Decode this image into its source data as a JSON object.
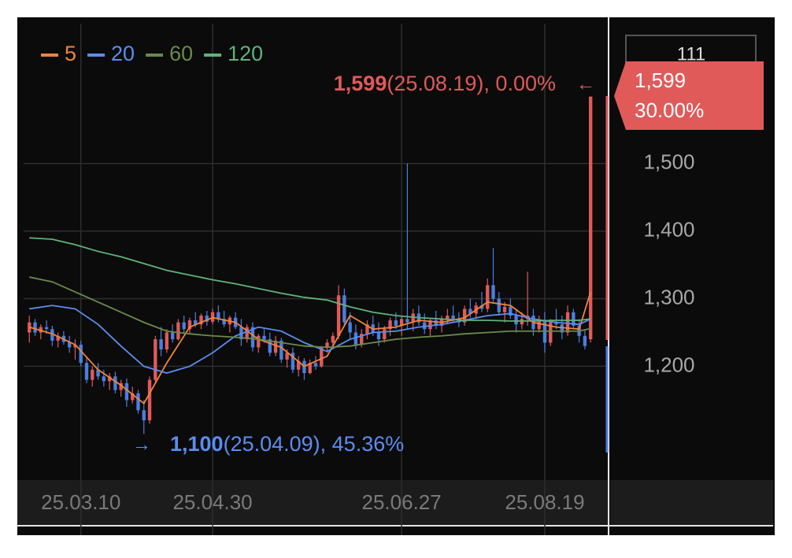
{
  "chart_data": {
    "type": "candlestick",
    "legend": [
      {
        "name": "5",
        "color": "#f0843c"
      },
      {
        "name": "20",
        "color": "#5b8def"
      },
      {
        "name": "60",
        "color": "#6b8a4a"
      },
      {
        "name": "120",
        "color": "#5fb37a"
      }
    ],
    "up_color": "#e05a5a",
    "down_color": "#4a7fe0",
    "xlim": [
      -1,
      101
    ],
    "ylim": [
      1034,
      1707
    ],
    "xticks": [
      {
        "value": 9,
        "label": "25.03.10"
      },
      {
        "value": 32,
        "label": "25.04.30"
      },
      {
        "value": 65,
        "label": "25.06.27"
      },
      {
        "value": 90,
        "label": "25.08.19"
      }
    ],
    "yticks": [
      {
        "value": 1200,
        "label": "1,200"
      },
      {
        "value": 1300,
        "label": "1,300"
      },
      {
        "value": 1400,
        "label": "1,400"
      },
      {
        "value": 1500,
        "label": "1,500"
      }
    ],
    "top_box_label": "111",
    "current_price": {
      "value": 1599,
      "label": "1,599",
      "change": "30.00%"
    },
    "high_note": {
      "value": 1599,
      "label": "1,599",
      "detail": "(25.08.19), 0.00%"
    },
    "low_note": {
      "value": 1100,
      "label": "1,100",
      "detail": "(25.04.09), 45.36%"
    },
    "candles": [
      [
        1250,
        1275,
        1235,
        1265
      ],
      [
        1265,
        1270,
        1245,
        1250
      ],
      [
        1250,
        1262,
        1240,
        1258
      ],
      [
        1258,
        1268,
        1248,
        1255
      ],
      [
        1255,
        1260,
        1230,
        1238
      ],
      [
        1238,
        1250,
        1228,
        1245
      ],
      [
        1245,
        1252,
        1232,
        1236
      ],
      [
        1236,
        1245,
        1220,
        1228
      ],
      [
        1228,
        1240,
        1210,
        1232
      ],
      [
        1232,
        1238,
        1200,
        1205
      ],
      [
        1205,
        1215,
        1175,
        1180
      ],
      [
        1180,
        1200,
        1170,
        1195
      ],
      [
        1195,
        1205,
        1180,
        1185
      ],
      [
        1185,
        1195,
        1170,
        1178
      ],
      [
        1178,
        1190,
        1165,
        1185
      ],
      [
        1185,
        1192,
        1160,
        1165
      ],
      [
        1165,
        1180,
        1155,
        1175
      ],
      [
        1175,
        1182,
        1140,
        1150
      ],
      [
        1150,
        1170,
        1145,
        1160
      ],
      [
        1160,
        1165,
        1130,
        1135
      ],
      [
        1135,
        1150,
        1100,
        1120
      ],
      [
        1120,
        1185,
        1115,
        1180
      ],
      [
        1180,
        1245,
        1175,
        1240
      ],
      [
        1240,
        1258,
        1215,
        1225
      ],
      [
        1225,
        1255,
        1220,
        1250
      ],
      [
        1250,
        1262,
        1235,
        1240
      ],
      [
        1240,
        1270,
        1238,
        1265
      ],
      [
        1265,
        1275,
        1250,
        1255
      ],
      [
        1255,
        1272,
        1248,
        1268
      ],
      [
        1268,
        1280,
        1258,
        1262
      ],
      [
        1262,
        1278,
        1255,
        1275
      ],
      [
        1275,
        1282,
        1260,
        1266
      ],
      [
        1266,
        1285,
        1262,
        1280
      ],
      [
        1280,
        1290,
        1265,
        1270
      ],
      [
        1270,
        1282,
        1258,
        1262
      ],
      [
        1262,
        1275,
        1250,
        1272
      ],
      [
        1272,
        1280,
        1255,
        1258
      ],
      [
        1258,
        1270,
        1230,
        1240
      ],
      [
        1240,
        1262,
        1235,
        1258
      ],
      [
        1258,
        1265,
        1222,
        1228
      ],
      [
        1228,
        1248,
        1220,
        1245
      ],
      [
        1245,
        1255,
        1235,
        1240
      ],
      [
        1240,
        1250,
        1215,
        1220
      ],
      [
        1220,
        1245,
        1215,
        1238
      ],
      [
        1238,
        1242,
        1205,
        1210
      ],
      [
        1210,
        1225,
        1198,
        1220
      ],
      [
        1220,
        1228,
        1190,
        1195
      ],
      [
        1195,
        1215,
        1185,
        1208
      ],
      [
        1208,
        1212,
        1180,
        1190
      ],
      [
        1190,
        1210,
        1188,
        1205
      ],
      [
        1205,
        1215,
        1195,
        1200
      ],
      [
        1200,
        1230,
        1198,
        1228
      ],
      [
        1228,
        1240,
        1220,
        1235
      ],
      [
        1235,
        1250,
        1225,
        1245
      ],
      [
        1245,
        1320,
        1240,
        1305
      ],
      [
        1305,
        1315,
        1260,
        1265
      ],
      [
        1265,
        1280,
        1240,
        1250
      ],
      [
        1250,
        1262,
        1225,
        1232
      ],
      [
        1232,
        1255,
        1228,
        1248
      ],
      [
        1248,
        1268,
        1240,
        1262
      ],
      [
        1262,
        1275,
        1245,
        1250
      ],
      [
        1250,
        1265,
        1230,
        1240
      ],
      [
        1240,
        1260,
        1235,
        1255
      ],
      [
        1255,
        1272,
        1245,
        1268
      ],
      [
        1268,
        1280,
        1255,
        1260
      ],
      [
        1260,
        1275,
        1245,
        1270
      ],
      [
        1270,
        1500,
        1255,
        1265
      ],
      [
        1265,
        1285,
        1252,
        1278
      ],
      [
        1278,
        1290,
        1260,
        1265
      ],
      [
        1265,
        1278,
        1248,
        1255
      ],
      [
        1255,
        1270,
        1245,
        1268
      ],
      [
        1268,
        1282,
        1255,
        1260
      ],
      [
        1260,
        1275,
        1250,
        1270
      ],
      [
        1270,
        1285,
        1262,
        1275
      ],
      [
        1275,
        1290,
        1265,
        1270
      ],
      [
        1270,
        1280,
        1258,
        1265
      ],
      [
        1265,
        1290,
        1260,
        1285
      ],
      [
        1285,
        1300,
        1272,
        1278
      ],
      [
        1278,
        1295,
        1270,
        1290
      ],
      [
        1290,
        1310,
        1280,
        1285
      ],
      [
        1285,
        1330,
        1280,
        1320
      ],
      [
        1320,
        1375,
        1295,
        1300
      ],
      [
        1300,
        1310,
        1275,
        1280
      ],
      [
        1280,
        1295,
        1265,
        1288
      ],
      [
        1288,
        1300,
        1270,
        1275
      ],
      [
        1275,
        1285,
        1250,
        1262
      ],
      [
        1262,
        1280,
        1255,
        1270
      ],
      [
        1270,
        1340,
        1260,
        1275
      ],
      [
        1275,
        1285,
        1245,
        1255
      ],
      [
        1255,
        1275,
        1250,
        1268
      ],
      [
        1268,
        1280,
        1220,
        1235
      ],
      [
        1235,
        1270,
        1230,
        1265
      ],
      [
        1265,
        1285,
        1255,
        1262
      ],
      [
        1262,
        1275,
        1240,
        1250
      ],
      [
        1250,
        1290,
        1245,
        1280
      ],
      [
        1280,
        1285,
        1255,
        1260
      ],
      [
        1260,
        1270,
        1235,
        1245
      ],
      [
        1245,
        1255,
        1225,
        1230
      ],
      [
        1240,
        1599,
        1235,
        1599
      ]
    ],
    "ma_x": [
      0,
      4,
      8,
      12,
      16,
      20,
      24,
      28,
      32,
      36,
      40,
      44,
      48,
      52,
      56,
      60,
      64,
      68,
      72,
      76,
      80,
      84,
      88,
      92,
      96,
      98
    ],
    "series": [
      {
        "name": "5",
        "color": "#f0843c",
        "values": [
          1258,
          1248,
          1232,
          1195,
          1172,
          1145,
          1205,
          1258,
          1272,
          1265,
          1240,
          1228,
          1200,
          1215,
          1275,
          1255,
          1258,
          1268,
          1265,
          1272,
          1295,
          1290,
          1265,
          1258,
          1255,
          1310
        ]
      },
      {
        "name": "20",
        "color": "#5b8def",
        "values": [
          1285,
          1290,
          1285,
          1262,
          1230,
          1200,
          1190,
          1200,
          1220,
          1245,
          1258,
          1252,
          1235,
          1222,
          1240,
          1250,
          1252,
          1258,
          1262,
          1268,
          1275,
          1278,
          1270,
          1265,
          1262,
          1270
        ]
      },
      {
        "name": "60",
        "color": "#6b8a4a",
        "values": [
          1332,
          1325,
          1310,
          1295,
          1280,
          1265,
          1252,
          1248,
          1245,
          1243,
          1240,
          1235,
          1230,
          1228,
          1230,
          1235,
          1240,
          1243,
          1245,
          1248,
          1250,
          1252,
          1252,
          1252,
          1252,
          1256
        ]
      },
      {
        "name": "120",
        "color": "#5fb37a",
        "values": [
          1390,
          1388,
          1380,
          1370,
          1362,
          1352,
          1342,
          1335,
          1328,
          1322,
          1315,
          1308,
          1302,
          1298,
          1288,
          1280,
          1275,
          1272,
          1270,
          1268,
          1268,
          1267,
          1267,
          1268,
          1268,
          1270
        ]
      }
    ]
  }
}
